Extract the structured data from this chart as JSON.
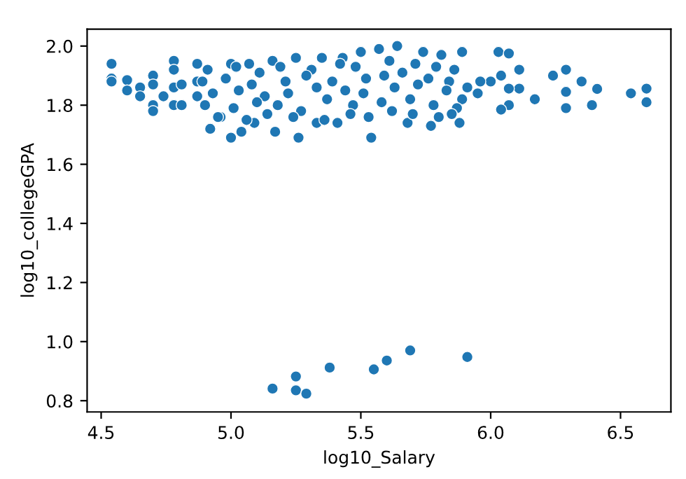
{
  "chart_data": {
    "type": "scatter",
    "xlabel": "log10_Salary",
    "ylabel": "log10_collegeGPA",
    "marker": "circle",
    "grid": false,
    "legend": false,
    "xlim": [
      4.446,
      6.694
    ],
    "ylim": [
      0.762,
      2.057
    ],
    "xticks": [
      {
        "value": 4.5,
        "label": "4.5"
      },
      {
        "value": 5.0,
        "label": "5.0"
      },
      {
        "value": 5.5,
        "label": "5.5"
      },
      {
        "value": 6.0,
        "label": "6.0"
      },
      {
        "value": 6.5,
        "label": "6.5"
      }
    ],
    "yticks": [
      {
        "value": 0.8,
        "label": "0.8"
      },
      {
        "value": 1.0,
        "label": "1.0"
      },
      {
        "value": 1.2,
        "label": "1.2"
      },
      {
        "value": 1.4,
        "label": "1.4"
      },
      {
        "value": 1.6,
        "label": "1.6"
      },
      {
        "value": 1.8,
        "label": "1.8"
      },
      {
        "value": 2.0,
        "label": "2.0"
      }
    ],
    "series": [
      {
        "color": "#1f77b4",
        "x": [
          5.16,
          5.25,
          5.25,
          5.29,
          5.38,
          5.55,
          5.6,
          5.69,
          5.91,
          4.54,
          4.54,
          4.54,
          4.6,
          4.6,
          4.65,
          4.65,
          4.7,
          4.7,
          4.7,
          4.7,
          4.74,
          4.78,
          4.78,
          4.78,
          4.78,
          4.81,
          4.81,
          4.87,
          4.87,
          4.87,
          4.92,
          4.96,
          5.0,
          5.04,
          5.09,
          5.17,
          5.26,
          5.33,
          5.41,
          5.54,
          5.0,
          5.07,
          5.16,
          5.25,
          5.35,
          5.43,
          5.5,
          5.57,
          5.64,
          5.74,
          5.81,
          5.89,
          6.03,
          6.07,
          6.11,
          6.04,
          6.0,
          5.96,
          5.95,
          6.11,
          6.07,
          6.07,
          6.04,
          6.17,
          6.24,
          6.29,
          6.29,
          6.29,
          6.35,
          6.41,
          6.39,
          6.54,
          6.6,
          6.6,
          5.89,
          5.88,
          5.77,
          5.68,
          4.91,
          5.02,
          5.11,
          5.19,
          5.31,
          5.42,
          5.48,
          5.61,
          5.71,
          5.79,
          5.86,
          4.89,
          4.98,
          5.08,
          5.21,
          5.29,
          5.39,
          5.52,
          5.59,
          5.66,
          5.76,
          5.84,
          4.93,
          5.03,
          5.13,
          5.22,
          5.33,
          5.44,
          5.51,
          5.63,
          5.72,
          5.83,
          5.91,
          4.9,
          5.01,
          5.1,
          5.18,
          5.27,
          5.37,
          5.47,
          5.58,
          5.69,
          5.78,
          5.87,
          4.95,
          5.06,
          5.14,
          5.24,
          5.36,
          5.46,
          5.53,
          5.62,
          5.7,
          5.8,
          5.85
        ],
        "values": [
          0.841,
          0.882,
          0.835,
          0.824,
          0.912,
          0.906,
          0.936,
          0.97,
          0.948,
          1.94,
          1.89,
          1.88,
          1.885,
          1.85,
          1.86,
          1.83,
          1.9,
          1.87,
          1.8,
          1.78,
          1.83,
          1.95,
          1.92,
          1.86,
          1.8,
          1.87,
          1.8,
          1.94,
          1.88,
          1.83,
          1.72,
          1.76,
          1.69,
          1.71,
          1.74,
          1.71,
          1.69,
          1.74,
          1.74,
          1.69,
          1.94,
          1.94,
          1.95,
          1.96,
          1.96,
          1.96,
          1.98,
          1.99,
          2.0,
          1.98,
          1.97,
          1.98,
          1.98,
          1.975,
          1.92,
          1.9,
          1.88,
          1.88,
          1.84,
          1.856,
          1.856,
          1.8,
          1.785,
          1.82,
          1.9,
          1.92,
          1.845,
          1.79,
          1.88,
          1.855,
          1.8,
          1.84,
          1.856,
          1.81,
          1.82,
          1.74,
          1.73,
          1.74,
          1.92,
          1.93,
          1.91,
          1.93,
          1.92,
          1.94,
          1.93,
          1.95,
          1.94,
          1.93,
          1.92,
          1.88,
          1.89,
          1.87,
          1.88,
          1.9,
          1.88,
          1.89,
          1.9,
          1.91,
          1.89,
          1.88,
          1.84,
          1.85,
          1.83,
          1.84,
          1.86,
          1.85,
          1.84,
          1.86,
          1.87,
          1.85,
          1.86,
          1.8,
          1.79,
          1.81,
          1.8,
          1.78,
          1.82,
          1.8,
          1.81,
          1.82,
          1.8,
          1.79,
          1.76,
          1.75,
          1.77,
          1.76,
          1.75,
          1.77,
          1.76,
          1.78,
          1.77,
          1.76,
          1.77
        ]
      }
    ]
  }
}
